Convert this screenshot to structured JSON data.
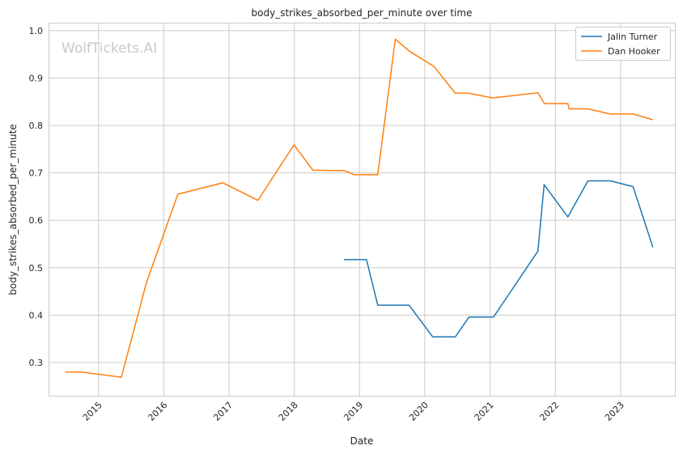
{
  "watermark": "WolfTickets.AI",
  "chart_data": {
    "type": "line",
    "title": "body_strikes_absorbed_per_minute over time",
    "xlabel": "Date",
    "ylabel": "body_strikes_absorbed_per_minute",
    "xlim": [
      "2014-04-01",
      "2023-11-01"
    ],
    "ylim": [
      0.23,
      1.015
    ],
    "x_ticks": [
      "2015-01-01",
      "2016-01-01",
      "2017-01-01",
      "2018-01-01",
      "2019-01-01",
      "2020-01-01",
      "2021-01-01",
      "2022-01-01",
      "2023-01-01"
    ],
    "x_tick_labels": [
      "2015",
      "2016",
      "2017",
      "2018",
      "2019",
      "2020",
      "2021",
      "2022",
      "2023"
    ],
    "y_ticks": [
      0.3,
      0.4,
      0.5,
      0.6,
      0.7,
      0.8,
      0.9,
      1.0
    ],
    "y_tick_labels": [
      "0.3",
      "0.4",
      "0.5",
      "0.6",
      "0.7",
      "0.8",
      "0.9",
      "1.0"
    ],
    "grid": true,
    "legend_position": "top-right",
    "series": [
      {
        "name": "Jalin Turner",
        "color": "#1f77b4",
        "points": [
          [
            "2018-10-06",
            0.517
          ],
          [
            "2019-02-09",
            0.517
          ],
          [
            "2019-04-13",
            0.421
          ],
          [
            "2019-10-05",
            0.421
          ],
          [
            "2020-02-15",
            0.354
          ],
          [
            "2020-06-20",
            0.354
          ],
          [
            "2020-09-05",
            0.396
          ],
          [
            "2021-01-20",
            0.396
          ],
          [
            "2021-09-25",
            0.535
          ],
          [
            "2021-10-30",
            0.675
          ],
          [
            "2022-03-12",
            0.607
          ],
          [
            "2022-07-02",
            0.683
          ],
          [
            "2022-11-05",
            0.683
          ],
          [
            "2023-03-12",
            0.671
          ],
          [
            "2023-07-01",
            0.543
          ]
        ]
      },
      {
        "name": "Dan Hooker",
        "color": "#ff7f0e",
        "points": [
          [
            "2014-06-28",
            0.28
          ],
          [
            "2014-09-27",
            0.28
          ],
          [
            "2015-05-09",
            0.269
          ],
          [
            "2015-09-26",
            0.468
          ],
          [
            "2016-03-20",
            0.655
          ],
          [
            "2016-11-27",
            0.679
          ],
          [
            "2017-06-11",
            0.642
          ],
          [
            "2017-12-30",
            0.759
          ],
          [
            "2018-04-14",
            0.706
          ],
          [
            "2018-07-07",
            0.705
          ],
          [
            "2018-10-06",
            0.705
          ],
          [
            "2018-12-02",
            0.696
          ],
          [
            "2019-04-13",
            0.696
          ],
          [
            "2019-07-20",
            0.982
          ],
          [
            "2019-10-05",
            0.957
          ],
          [
            "2020-02-22",
            0.924
          ],
          [
            "2020-06-20",
            0.868
          ],
          [
            "2020-09-01",
            0.868
          ],
          [
            "2021-01-16",
            0.858
          ],
          [
            "2021-09-25",
            0.869
          ],
          [
            "2021-11-01",
            0.846
          ],
          [
            "2022-03-12",
            0.846
          ],
          [
            "2022-03-19",
            0.835
          ],
          [
            "2022-07-02",
            0.835
          ],
          [
            "2022-11-05",
            0.824
          ],
          [
            "2023-03-12",
            0.824
          ],
          [
            "2023-07-01",
            0.812
          ]
        ]
      }
    ]
  }
}
